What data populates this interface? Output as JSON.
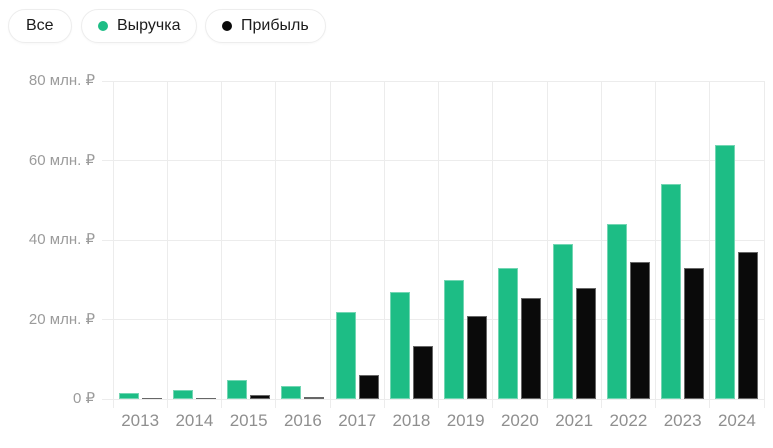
{
  "legend": {
    "all_label": "Все"
  },
  "chart_data": {
    "type": "bar",
    "title": "",
    "categories": [
      "2013",
      "2014",
      "2015",
      "2016",
      "2017",
      "2018",
      "2019",
      "2020",
      "2021",
      "2022",
      "2023",
      "2024"
    ],
    "series": [
      {
        "name": "Выручка",
        "color": "#1dbd85",
        "values": [
          1.5,
          2.2,
          4.8,
          3.2,
          22,
          27,
          30,
          33,
          39,
          44,
          54,
          64
        ]
      },
      {
        "name": "Прибыль",
        "color": "#0a0a0a",
        "values": [
          0.3,
          0.3,
          1,
          0.4,
          6,
          13.3,
          21,
          25.5,
          28,
          34.5,
          33,
          37
        ]
      }
    ],
    "unit": "млн. ₽",
    "ylim": [
      0,
      80
    ],
    "y_ticks": [
      {
        "value": 0,
        "label": "0 ₽"
      },
      {
        "value": 20,
        "label": "20 млн. ₽"
      },
      {
        "value": 40,
        "label": "40 млн. ₽"
      },
      {
        "value": 60,
        "label": "60 млн. ₽"
      },
      {
        "value": 80,
        "label": "80 млн. ₽"
      }
    ],
    "grid": true,
    "legend_position": "top",
    "colors": {
      "grid": "#ececec",
      "axis_text": "#9b9b9b",
      "background": "#ffffff"
    }
  }
}
